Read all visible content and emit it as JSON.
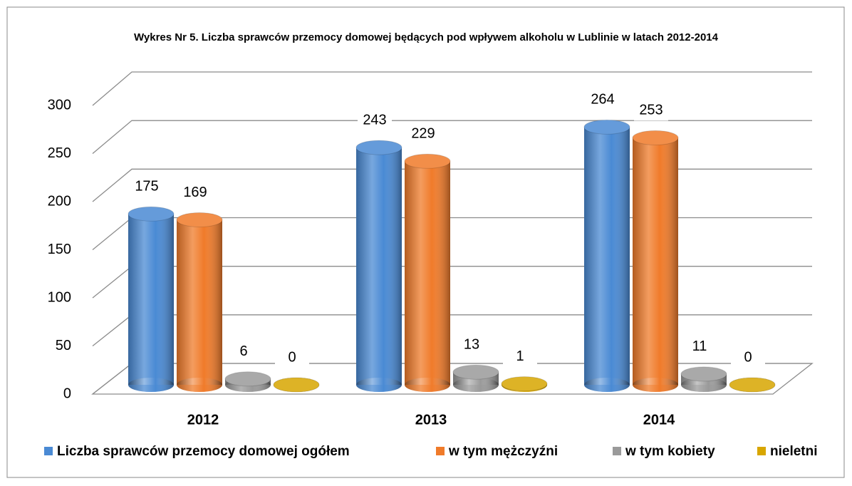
{
  "chart_data": {
    "type": "bar3d",
    "title": "Wykres Nr 5.  Liczba sprawców przemocy domowej będących pod wpływem alkoholu  w Lublinie w latach 2012-2014",
    "categories": [
      "2012",
      "2013",
      "2014"
    ],
    "series": [
      {
        "name": "Liczba sprawców przemocy domowej ogółem",
        "color": "#4a8ad4",
        "values": [
          175,
          243,
          264
        ]
      },
      {
        "name": "w tym mężczyźni",
        "color": "#f07b2a",
        "values": [
          169,
          229,
          253
        ]
      },
      {
        "name": "w tym kobiety",
        "color": "#9a9a9a",
        "values": [
          6,
          13,
          11
        ]
      },
      {
        "name": "nieletni",
        "color": "#d8a600",
        "values": [
          0,
          1,
          0
        ]
      }
    ],
    "ylim": [
      0,
      300
    ],
    "yticks": [
      0,
      50,
      100,
      150,
      200,
      250,
      300
    ],
    "grid": true,
    "legend": "bottom"
  }
}
